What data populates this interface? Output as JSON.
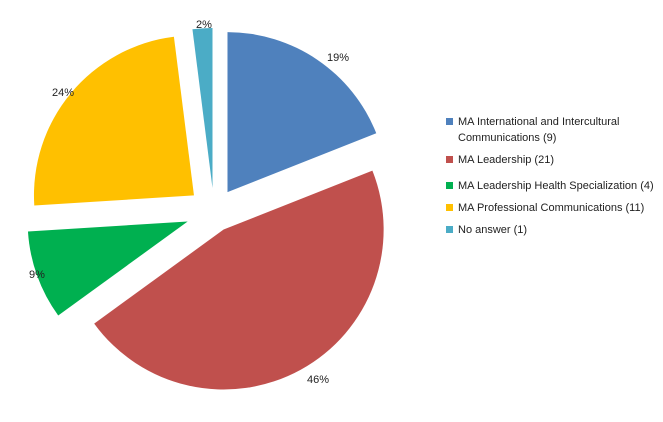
{
  "chart_data": {
    "type": "pie",
    "exploded": true,
    "legend_position": "right",
    "slices": [
      {
        "label": "MA International and Intercultural Communications (9)",
        "value": 19,
        "value_label": "19%",
        "color": "#4F81BD"
      },
      {
        "label": "MA Leadership (21)",
        "value": 46,
        "value_label": "46%",
        "color": "#C0504D"
      },
      {
        "label": "MA Leadership Health Specialization (4)",
        "value": 9,
        "value_label": "9%",
        "color": "#00B050"
      },
      {
        "label": "MA Professional Communications (11)",
        "value": 24,
        "value_label": "24%",
        "color": "#FFC000"
      },
      {
        "label": "No answer (1)",
        "value": 2,
        "value_label": "2%",
        "color": "#4BACC6"
      }
    ]
  }
}
